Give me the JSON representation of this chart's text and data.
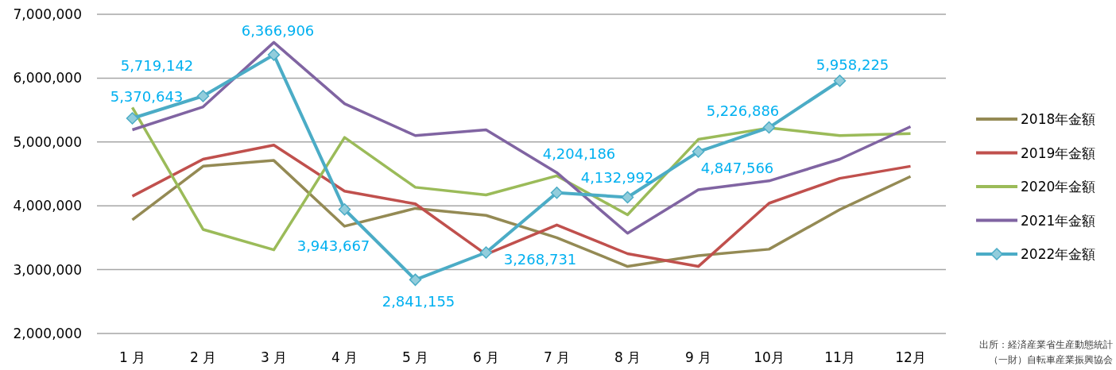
{
  "chart_data": {
    "type": "line",
    "categories": [
      "1 月",
      "2 月",
      "3 月",
      "4 月",
      "5 月",
      "6 月",
      "7 月",
      "8 月",
      "9 月",
      "10月",
      "11月",
      "12月"
    ],
    "ylim": [
      2000000,
      7000000
    ],
    "yticks": [
      {
        "value": 2000000,
        "label": "2,000,000"
      },
      {
        "value": 3000000,
        "label": "3,000,000"
      },
      {
        "value": 4000000,
        "label": "4,000,000"
      },
      {
        "value": 5000000,
        "label": "5,000,000"
      },
      {
        "value": 6000000,
        "label": "6,000,000"
      },
      {
        "value": 7000000,
        "label": "7,000,000"
      }
    ],
    "grid": "y",
    "legend": "right",
    "series": [
      {
        "name": "2018年金額",
        "color": "#948a54",
        "values": [
          3780000,
          4620000,
          4710000,
          3680000,
          3960000,
          3850000,
          3500000,
          3050000,
          3220000,
          3320000,
          3940000,
          4460000
        ]
      },
      {
        "name": "2019年金額",
        "color": "#c0504d",
        "values": [
          4150000,
          4730000,
          4950000,
          4230000,
          4030000,
          3240000,
          3700000,
          3250000,
          3050000,
          4040000,
          4430000,
          4620000
        ]
      },
      {
        "name": "2020年金額",
        "color": "#9bbb59",
        "values": [
          5540000,
          3630000,
          3310000,
          5070000,
          4290000,
          4170000,
          4470000,
          3860000,
          5040000,
          5220000,
          5100000,
          5130000
        ]
      },
      {
        "name": "2021年金額",
        "color": "#8064a2",
        "values": [
          5190000,
          5550000,
          6560000,
          5600000,
          5100000,
          5190000,
          4520000,
          3570000,
          4250000,
          4390000,
          4730000,
          5240000
        ]
      },
      {
        "name": "2022年金額",
        "color": "#4bacc6",
        "marker": "diamond",
        "value_labels": [
          "5,370,643",
          "5,719,142",
          "6,366,906",
          "3,943,667",
          "2,841,155",
          "3,268,731",
          "4,204,186",
          "4,132,992",
          "4,847,566",
          "5,226,886",
          "5,958,225",
          null
        ],
        "values": [
          5370643,
          5719142,
          6366906,
          3943667,
          2841155,
          3268731,
          4204186,
          4132992,
          4847566,
          5226886,
          5958225,
          null
        ]
      }
    ],
    "annotations": [
      "出所：経済産業省生産動態統計",
      "（一財）自転車産業振興協会"
    ]
  }
}
